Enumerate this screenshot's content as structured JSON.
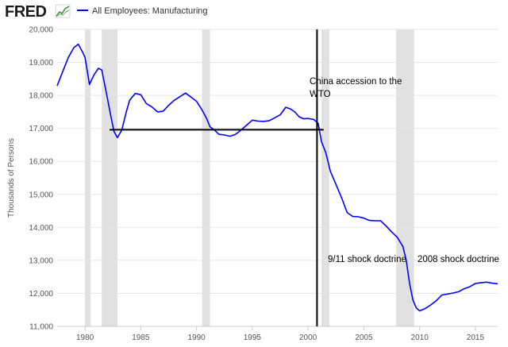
{
  "logo": {
    "text": "FRED"
  },
  "colors": {
    "series": "#0000ff",
    "recession": "#e1e1e1",
    "grid": "#e6e6e6",
    "annotation": "#000000"
  },
  "chart_data": {
    "type": "line",
    "title": "",
    "ylabel": "Thousands of Persons",
    "xlabel": "",
    "xlim": [
      1977.5,
      2017
    ],
    "ylim": [
      11000,
      20000
    ],
    "yticks": [
      11000,
      12000,
      13000,
      14000,
      15000,
      16000,
      17000,
      18000,
      19000,
      20000
    ],
    "ytick_labels": [
      "11,000",
      "12,000",
      "13,000",
      "14,000",
      "15,000",
      "16,000",
      "17,000",
      "18,000",
      "19,000",
      "20,000"
    ],
    "xticks": [
      1980,
      1985,
      1990,
      1995,
      2000,
      2005,
      2010,
      2015
    ],
    "xtick_labels": [
      "1980",
      "1985",
      "1990",
      "1995",
      "2000",
      "2005",
      "2010",
      "2015"
    ],
    "legend": [
      {
        "name": "All Employees: Manufacturing",
        "color": "#0000ff"
      }
    ],
    "recessions": [
      [
        1980.0,
        1980.5
      ],
      [
        1981.5,
        1982.9
      ],
      [
        1990.5,
        1991.2
      ],
      [
        2001.2,
        2001.9
      ],
      [
        2007.9,
        2009.5
      ]
    ],
    "series": [
      {
        "name": "All Employees: Manufacturing",
        "x": [
          1977.5,
          1978.0,
          1978.5,
          1979.0,
          1979.4,
          1979.8,
          1980.0,
          1980.4,
          1980.8,
          1981.2,
          1981.5,
          1981.9,
          1982.3,
          1982.6,
          1982.9,
          1983.3,
          1983.7,
          1984.0,
          1984.5,
          1985.0,
          1985.5,
          1986.0,
          1986.5,
          1987.0,
          1987.5,
          1988.0,
          1988.5,
          1989.0,
          1989.5,
          1990.0,
          1990.5,
          1990.9,
          1991.2,
          1991.6,
          1992.0,
          1992.5,
          1993.0,
          1993.5,
          1994.0,
          1994.5,
          1995.0,
          1995.5,
          1996.0,
          1996.5,
          1997.0,
          1997.5,
          1998.0,
          1998.4,
          1998.8,
          1999.2,
          1999.6,
          2000.0,
          2000.5,
          2000.9,
          2001.2,
          2001.6,
          2002.0,
          2002.5,
          2003.0,
          2003.5,
          2004.0,
          2004.5,
          2005.0,
          2005.5,
          2006.0,
          2006.5,
          2007.0,
          2007.5,
          2008.0,
          2008.5,
          2008.8,
          2009.1,
          2009.4,
          2009.7,
          2010.0,
          2010.5,
          2011.0,
          2011.5,
          2012.0,
          2012.5,
          2013.0,
          2013.5,
          2014.0,
          2014.5,
          2015.0,
          2015.5,
          2016.0,
          2016.5,
          2017.0
        ],
        "values": [
          18290,
          18720,
          19150,
          19450,
          19550,
          19300,
          19150,
          18330,
          18620,
          18820,
          18770,
          18100,
          17400,
          16900,
          16720,
          16950,
          17500,
          17850,
          18060,
          18020,
          17750,
          17650,
          17500,
          17520,
          17700,
          17850,
          17960,
          18070,
          17950,
          17820,
          17550,
          17300,
          17050,
          16950,
          16820,
          16800,
          16760,
          16820,
          16950,
          17100,
          17250,
          17220,
          17210,
          17230,
          17320,
          17410,
          17640,
          17590,
          17500,
          17350,
          17290,
          17300,
          17270,
          17150,
          16600,
          16250,
          15700,
          15300,
          14900,
          14450,
          14330,
          14320,
          14280,
          14210,
          14200,
          14200,
          14040,
          13860,
          13700,
          13420,
          13000,
          12300,
          11800,
          11560,
          11470,
          11540,
          11650,
          11780,
          11950,
          11980,
          12010,
          12050,
          12140,
          12200,
          12300,
          12320,
          12340,
          12310,
          12290
        ]
      }
    ],
    "annotations": {
      "wto_line1": "China accession to the",
      "wto_line2": "WTO",
      "shock_911": "9/11 shock doctrine",
      "shock_2008": "2008 shock doctrine"
    },
    "reference_lines": {
      "vertical_x": 2000.8,
      "horizontal_y": 16960,
      "horizontal_x_range": [
        1982.2,
        2001.4
      ]
    }
  }
}
